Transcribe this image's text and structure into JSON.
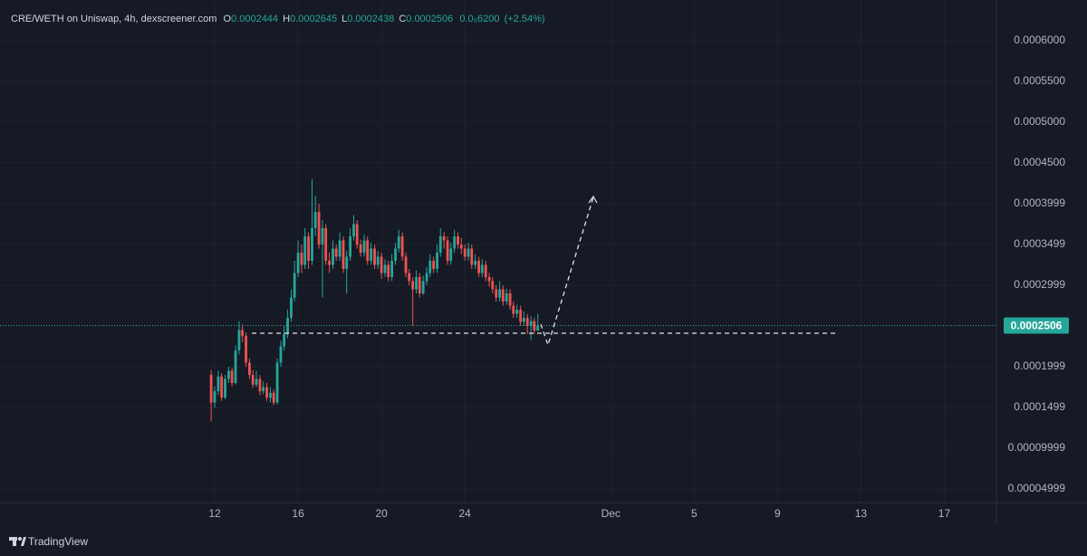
{
  "chart_data": {
    "type": "candlestick",
    "title": "CRE/WETH on Uniswap, 4h, dexscreener.com",
    "ohlc_labels": [
      "O",
      "H",
      "L",
      "C"
    ],
    "change": "0.0₅6200",
    "change_pct": "(+2.54%)",
    "up_color": "#26a69a",
    "down_color": "#ef5350",
    "xlim": [
      1.7,
      49.5
    ],
    "ylim": [
      3.33e-05,
      0.00065
    ],
    "xticks": [
      12,
      16,
      20,
      24,
      {
        "value": 31,
        "label": "Dec"
      },
      {
        "value": 35,
        "label": "5"
      },
      {
        "value": 39,
        "label": "9"
      },
      {
        "value": 43,
        "label": "13"
      },
      {
        "value": 47,
        "label": "17"
      }
    ],
    "yticks": [
      {
        "value": 0.0006,
        "label": "0.0006000"
      },
      {
        "value": 0.00055,
        "label": "0.0005500"
      },
      {
        "value": 0.0005,
        "label": "0.0005000"
      },
      {
        "value": 0.00045,
        "label": "0.0004500"
      },
      0.0003999,
      0.0003499,
      0.0002999,
      0.0001999,
      0.0001499,
      9.999e-05,
      4.999e-05
    ],
    "grid": true,
    "x": [
      11.83,
      12,
      12.17,
      12.33,
      12.5,
      12.67,
      12.83,
      13,
      13.17,
      13.33,
      13.5,
      13.67,
      13.83,
      14,
      14.17,
      14.33,
      14.5,
      14.67,
      14.83,
      15,
      15.17,
      15.33,
      15.5,
      15.67,
      15.83,
      16,
      16.17,
      16.33,
      16.5,
      16.67,
      16.83,
      17,
      17.17,
      17.33,
      17.5,
      17.67,
      17.83,
      18,
      18.17,
      18.33,
      18.5,
      18.67,
      18.83,
      19,
      19.17,
      19.33,
      19.5,
      19.67,
      19.83,
      20,
      20.17,
      20.33,
      20.5,
      20.67,
      20.83,
      21,
      21.17,
      21.33,
      21.5,
      21.67,
      21.83,
      22,
      22.17,
      22.33,
      22.5,
      22.67,
      22.83,
      23,
      23.17,
      23.33,
      23.5,
      23.67,
      23.83,
      24,
      24.17,
      24.33,
      24.5,
      24.67,
      24.83,
      25,
      25.17,
      25.33,
      25.5,
      25.67,
      25.83,
      26,
      26.17,
      26.33,
      26.5,
      26.67,
      26.83,
      27,
      27.17,
      27.33,
      27.5
    ],
    "open": [
      0.00019,
      0.000156,
      0.00017,
      0.000188,
      0.000162,
      0.000185,
      0.000195,
      0.00018,
      0.00022,
      0.000245,
      0.000238,
      0.000205,
      0.00019,
      0.000178,
      0.000185,
      0.00017,
      0.000175,
      0.000162,
      0.000168,
      0.000156,
      0.000205,
      0.000225,
      0.00024,
      0.00026,
      0.000285,
      0.000315,
      0.00034,
      0.000325,
      0.00036,
      0.00033,
      0.00037,
      0.00039,
      0.00035,
      0.00037,
      0.00033,
      0.000325,
      0.000345,
      0.000335,
      0.000355,
      0.00032,
      0.000335,
      0.00036,
      0.000375,
      0.00035,
      0.00034,
      0.000355,
      0.00033,
      0.000345,
      0.000325,
      0.000335,
      0.000315,
      0.000325,
      0.00031,
      0.00033,
      0.000345,
      0.00036,
      0.000335,
      0.000315,
      0.000305,
      0.000295,
      0.00031,
      0.00029,
      0.000305,
      0.000315,
      0.00033,
      0.00032,
      0.00034,
      0.00036,
      0.000355,
      0.00033,
      0.000345,
      0.00036,
      0.00035,
      0.000345,
      0.000335,
      0.000345,
      0.000325,
      0.00033,
      0.000315,
      0.000325,
      0.00031,
      0.000305,
      0.000295,
      0.000285,
      0.000295,
      0.00028,
      0.00029,
      0.000275,
      0.000265,
      0.00027,
      0.000255,
      0.00026,
      0.00025,
      0.000256,
      0.0002444
    ],
    "high": [
      0.000196,
      0.000176,
      0.000195,
      0.000192,
      0.00019,
      0.0002,
      0.000199,
      0.000226,
      0.000256,
      0.000252,
      0.000242,
      0.00021,
      0.000196,
      0.000195,
      0.00019,
      0.000182,
      0.00018,
      0.000175,
      0.000172,
      0.00021,
      0.000232,
      0.00025,
      0.00027,
      0.000295,
      0.00033,
      0.000355,
      0.00035,
      0.00037,
      0.000365,
      0.00043,
      0.00041,
      0.0004,
      0.00038,
      0.000375,
      0.00034,
      0.000355,
      0.00035,
      0.000365,
      0.00036,
      0.000342,
      0.00037,
      0.000386,
      0.00038,
      0.000356,
      0.000362,
      0.00036,
      0.000352,
      0.00035,
      0.000342,
      0.00034,
      0.000332,
      0.00033,
      0.000338,
      0.000352,
      0.000368,
      0.000365,
      0.00034,
      0.00032,
      0.00031,
      0.000318,
      0.000315,
      0.000312,
      0.000322,
      0.000338,
      0.000335,
      0.00035,
      0.00037,
      0.000365,
      0.00036,
      0.000352,
      0.000368,
      0.000365,
      0.000358,
      0.00035,
      0.000352,
      0.00035,
      0.000338,
      0.000335,
      0.000332,
      0.00033,
      0.000315,
      0.00031,
      0.0003,
      0.000305,
      0.0003,
      0.000296,
      0.000295,
      0.00028,
      0.000276,
      0.000275,
      0.000268,
      0.000265,
      0.000262,
      0.00026,
      0.0002645
    ],
    "low": [
      0.000133,
      0.00015,
      0.000165,
      0.000158,
      0.00016,
      0.00018,
      0.000176,
      0.000178,
      0.000215,
      0.00023,
      0.0002,
      0.000185,
      0.000174,
      0.000175,
      0.000165,
      0.000166,
      0.000158,
      0.000156,
      0.000153,
      0.000154,
      0.0002,
      0.00022,
      0.000235,
      0.000255,
      0.00028,
      0.00031,
      0.000315,
      0.00032,
      0.00032,
      0.000325,
      0.00036,
      0.000345,
      0.000285,
      0.000325,
      0.000315,
      0.00032,
      0.00033,
      0.00033,
      0.000315,
      0.00029,
      0.00033,
      0.000355,
      0.000345,
      0.000335,
      0.000335,
      0.000325,
      0.000325,
      0.00032,
      0.00032,
      0.000308,
      0.00031,
      0.000305,
      0.000305,
      0.000325,
      0.00034,
      0.00033,
      0.00031,
      0.0003,
      0.00025,
      0.00029,
      0.000285,
      0.000288,
      0.0003,
      0.00031,
      0.000315,
      0.000315,
      0.000335,
      0.000345,
      0.000325,
      0.000325,
      0.00034,
      0.000345,
      0.000338,
      0.00033,
      0.00033,
      0.00032,
      0.00032,
      0.00031,
      0.00031,
      0.000305,
      0.000298,
      0.00029,
      0.00028,
      0.00028,
      0.000275,
      0.000276,
      0.00027,
      0.00026,
      0.00026,
      0.00025,
      0.00025,
      0.00024,
      0.000233,
      0.00024,
      0.0002438
    ],
    "close": [
      0.000156,
      0.00017,
      0.000188,
      0.000162,
      0.000185,
      0.000195,
      0.00018,
      0.00022,
      0.000245,
      0.000238,
      0.000205,
      0.00019,
      0.000178,
      0.000185,
      0.00017,
      0.000175,
      0.000162,
      0.000168,
      0.000156,
      0.000205,
      0.000225,
      0.00024,
      0.00026,
      0.000285,
      0.000315,
      0.00034,
      0.000325,
      0.00036,
      0.00033,
      0.00037,
      0.00039,
      0.00035,
      0.00037,
      0.00033,
      0.000325,
      0.000345,
      0.000335,
      0.000355,
      0.00032,
      0.000335,
      0.00036,
      0.000375,
      0.00035,
      0.00034,
      0.000355,
      0.00033,
      0.000345,
      0.000325,
      0.000335,
      0.000315,
      0.000325,
      0.00031,
      0.00033,
      0.000345,
      0.00036,
      0.000335,
      0.000315,
      0.000305,
      0.000295,
      0.00031,
      0.00029,
      0.000305,
      0.000315,
      0.00033,
      0.00032,
      0.00034,
      0.00036,
      0.000355,
      0.00033,
      0.000345,
      0.00036,
      0.00035,
      0.000345,
      0.000335,
      0.000345,
      0.000325,
      0.00033,
      0.000315,
      0.000325,
      0.00031,
      0.000305,
      0.000295,
      0.000285,
      0.000295,
      0.00028,
      0.00029,
      0.000275,
      0.000265,
      0.00027,
      0.000255,
      0.00026,
      0.00025,
      0.000256,
      0.0002444,
      0.0002506
    ]
  },
  "footer": {
    "brand": "TradingView"
  }
}
